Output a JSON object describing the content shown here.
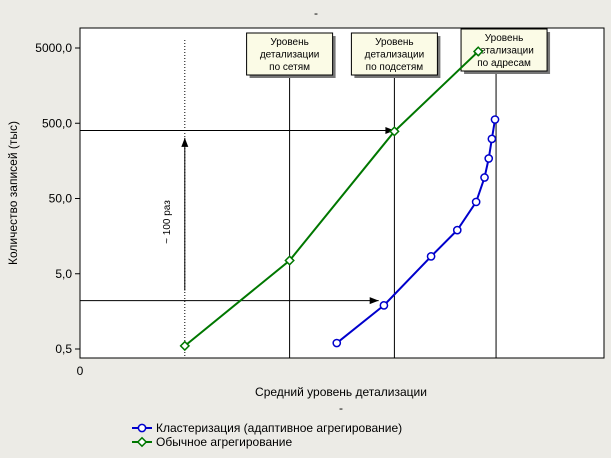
{
  "chart_data": {
    "type": "line",
    "title": "-",
    "xlabel": "Средний уровень детализации",
    "xlabel_suffix": "-",
    "ylabel": "Количество записей (тыс)",
    "y_scale": "log",
    "y_ticks": [
      "0,5",
      "5,0",
      "50,0",
      "500,0",
      "5000,0"
    ],
    "y_tick_values": [
      0.5,
      5,
      50,
      500,
      5000
    ],
    "x_tick_label": "0",
    "x_range": [
      0,
      5
    ],
    "ylim": [
      0.4,
      15000
    ],
    "grid": false,
    "legend_position": "bottom-left",
    "series": [
      {
        "name": "Кластеризация (адаптивное агрегирование)",
        "color": "#0000CC",
        "marker": "circle",
        "x": [
          2.45,
          2.9,
          3.35,
          3.6,
          3.78,
          3.86,
          3.9,
          3.93,
          3.96
        ],
        "y": [
          0.6,
          1.9,
          8.5,
          19,
          45,
          95,
          170,
          310,
          560
        ]
      },
      {
        "name": "Обычное агрегирование",
        "color": "#007700",
        "marker": "diamond",
        "x": [
          1.0,
          2.0,
          3.0,
          3.8
        ],
        "y": [
          0.55,
          7.5,
          390,
          4500
        ]
      }
    ],
    "vertical_lines": [
      {
        "x": 1.0,
        "label": "",
        "style": "dotted"
      },
      {
        "x": 2.0,
        "label": "Уровень|детализации|по сетям",
        "style": "solid"
      },
      {
        "x": 3.0,
        "label": "Уровень|детализации|по подсетям",
        "style": "solid"
      },
      {
        "x": 3.97,
        "label": "Уровень|детализации|по адресам",
        "style": "solid"
      }
    ],
    "arrows": [
      {
        "from": [
          0,
          400
        ],
        "to": [
          3.0,
          400
        ]
      },
      {
        "from": [
          0,
          2.2
        ],
        "to": [
          2.85,
          2.2
        ]
      },
      {
        "from": [
          1.0,
          3.0
        ],
        "to": [
          1.0,
          320
        ]
      }
    ],
    "annotation_text": "~ 100  раз"
  }
}
